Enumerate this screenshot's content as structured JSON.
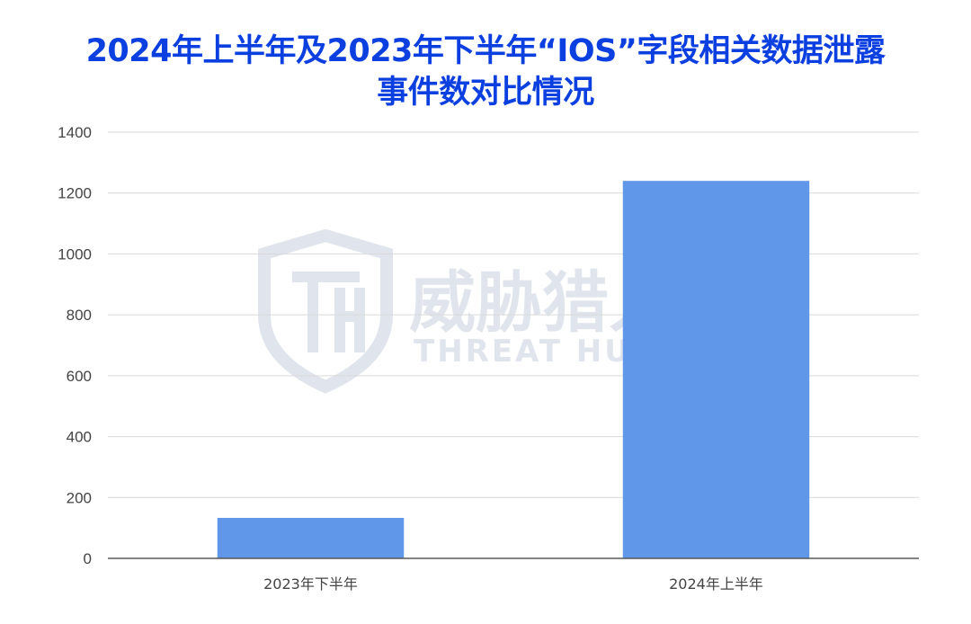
{
  "chart_data": {
    "type": "bar",
    "title_lines": [
      "2024年上半年及2023年下半年“IOS”字段相关数据泄露",
      "事件数对比情况"
    ],
    "categories": [
      "2023年下半年",
      "2024年上半年"
    ],
    "values": [
      133,
      1240
    ],
    "ylim": [
      0,
      1400
    ],
    "yticks": [
      0,
      200,
      400,
      600,
      800,
      1000,
      1200,
      1400
    ],
    "grid": true,
    "xlabel": "",
    "ylabel": "",
    "colors": {
      "bar": "#6197e8",
      "grid": "#d9d9d9",
      "axis": "#595959",
      "title": "#0b3fe0"
    }
  },
  "watermark": {
    "logo_text": "威胁猎人",
    "logo_subtext": "THREAT HUNTER",
    "icon": "shield-th-logo-icon"
  }
}
